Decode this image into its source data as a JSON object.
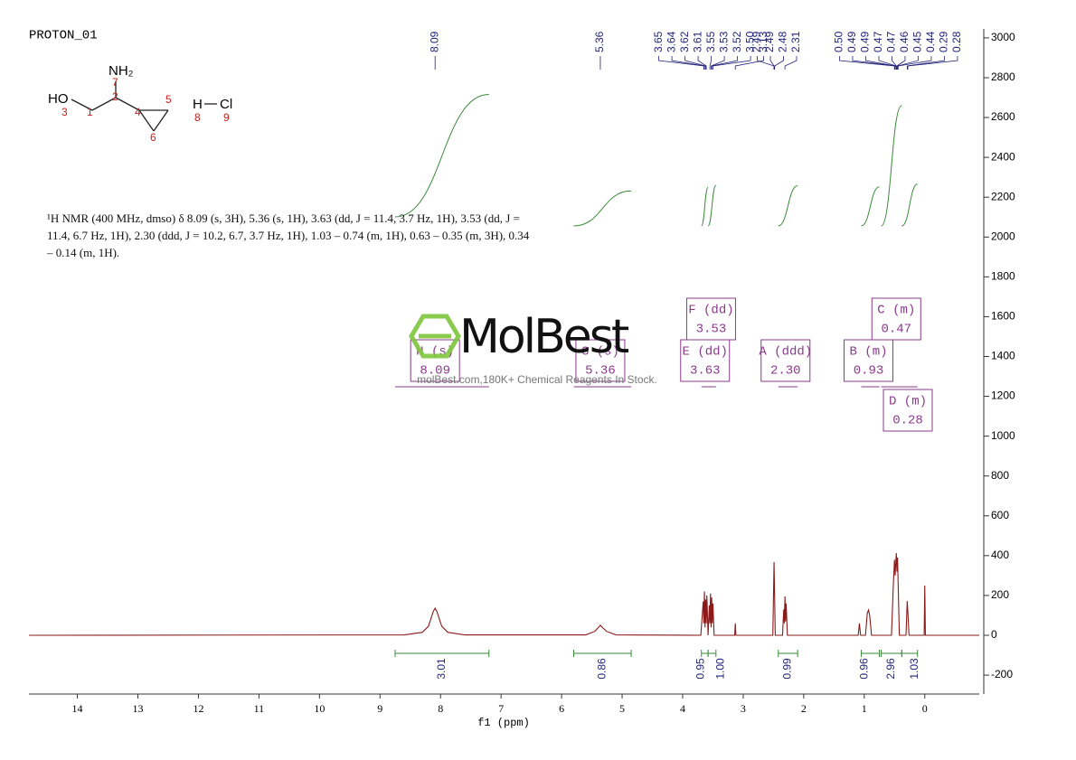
{
  "chart_data": {
    "type": "nmr",
    "title": "PROTON_01",
    "xlabel": "f1 (ppm)",
    "xlim": [
      14.8,
      -0.9
    ],
    "xticks": [
      14,
      13,
      12,
      11,
      10,
      9,
      8,
      7,
      6,
      5,
      4,
      3,
      2,
      1,
      0
    ],
    "ylim": [
      -295,
      3045
    ],
    "yticks": [
      -200,
      0,
      200,
      400,
      600,
      800,
      1000,
      1200,
      1400,
      1600,
      1800,
      2000,
      2200,
      2400,
      2600,
      2800,
      3000
    ],
    "series": [
      {
        "color": "#8b1a1a",
        "x": [
          14.8,
          8.6,
          8.3,
          8.2,
          8.12,
          8.09,
          8.06,
          7.98,
          7.88,
          7.6,
          5.6,
          5.45,
          5.36,
          5.26,
          5.1,
          3.7,
          3.66,
          3.65,
          3.64,
          3.63,
          3.62,
          3.61,
          3.6,
          3.58,
          3.56,
          3.55,
          3.54,
          3.53,
          3.52,
          3.51,
          3.5,
          3.48,
          3.14,
          3.13,
          3.12,
          2.51,
          2.49,
          2.47,
          2.35,
          2.33,
          2.32,
          2.31,
          2.3,
          2.29,
          2.27,
          1.1,
          1.08,
          1.06,
          0.98,
          0.95,
          0.93,
          0.91,
          0.88,
          0.55,
          0.52,
          0.5,
          0.49,
          0.47,
          0.46,
          0.45,
          0.44,
          0.42,
          0.31,
          0.29,
          0.28,
          0.26,
          0.01,
          0,
          -0.01,
          -0.9
        ],
        "values": [
          0,
          2,
          15,
          45,
          120,
          136,
          120,
          45,
          15,
          2,
          2,
          20,
          50,
          20,
          2,
          0,
          170,
          60,
          220,
          40,
          180,
          60,
          200,
          0,
          150,
          60,
          210,
          40,
          190,
          60,
          160,
          0,
          0,
          60,
          0,
          0,
          368,
          0,
          0,
          130,
          60,
          195,
          70,
          160,
          0,
          0,
          60,
          0,
          0,
          110,
          127,
          100,
          0,
          0,
          250,
          380,
          300,
          413,
          320,
          390,
          260,
          0,
          0,
          172,
          120,
          0,
          0,
          250,
          0,
          0
        ]
      }
    ],
    "peak_labels": [
      8.09,
      5.36,
      3.65,
      3.64,
      3.62,
      3.61,
      3.55,
      3.53,
      3.52,
      {
        "value": 3.5,
        "label": "3.50"
      },
      3.13,
      2.49,
      2.49,
      2.48,
      2.31,
      {
        "value": 0.5,
        "label": "0.50"
      },
      0.49,
      0.49,
      0.47,
      0.47,
      0.46,
      0.45,
      0.44,
      0.29,
      0.28
    ],
    "multiplets": [
      {
        "name": "H (s)",
        "shift": 8.09
      },
      {
        "name": "G (s)",
        "shift": 5.36
      },
      {
        "name": "E (dd)",
        "shift": 3.63
      },
      {
        "name": "F (dd)",
        "shift": 3.53
      },
      {
        "name": "A (ddd)",
        "shift": {
          "value": 2.3,
          "label": "2.30"
        }
      },
      {
        "name": "B (m)",
        "shift": 0.93
      },
      {
        "name": "C (m)",
        "shift": 0.47
      },
      {
        "name": "D (m)",
        "shift": 0.28
      }
    ],
    "integrals": [
      {
        "from": 8.75,
        "to": 7.2,
        "value": 3.01
      },
      {
        "from": 5.8,
        "to": 4.85,
        "value": 0.86
      },
      {
        "from": 3.69,
        "to": 3.58,
        "value": 0.95
      },
      {
        "from": 3.58,
        "to": 3.45,
        "value": 1,
        "label": "1.00"
      },
      {
        "from": 2.42,
        "to": 2.1,
        "value": 0.99
      },
      {
        "from": 1.05,
        "to": 0.75,
        "value": 0.96
      },
      {
        "from": 0.72,
        "to": 0.38,
        "value": 2.96
      },
      {
        "from": 0.38,
        "to": 0.12,
        "value": 1.03
      }
    ],
    "integral_color": "#3a8a3a",
    "multiplet_color": "#8b3a8b",
    "peak_label_color": "#23237a"
  },
  "structure": {
    "atoms": [
      "NH₂",
      "HO",
      "H",
      "Cl"
    ],
    "atom_numbers": [
      "7",
      "2",
      "3",
      "1",
      "4",
      "5",
      "6",
      "8",
      "9"
    ]
  },
  "description": "¹H NMR (400 MHz, dmso) δ 8.09 (s, 3H), 5.36 (s, 1H), 3.63 (dd, J = 11.4, 3.7 Hz, 1H), 3.53 (dd, J = 11.4, 6.7 Hz, 1H), 2.30 (ddd, J = 10.2, 6.7, 3.7 Hz, 1H), 1.03 – 0.74 (m, 1H), 0.63 – 0.35 (m, 3H), 0.34 – 0.14 (m, 1H).",
  "watermark": {
    "brand": "MolBest",
    "tagline": "molBest.com,180K+ Chemical Reagents In Stock."
  }
}
